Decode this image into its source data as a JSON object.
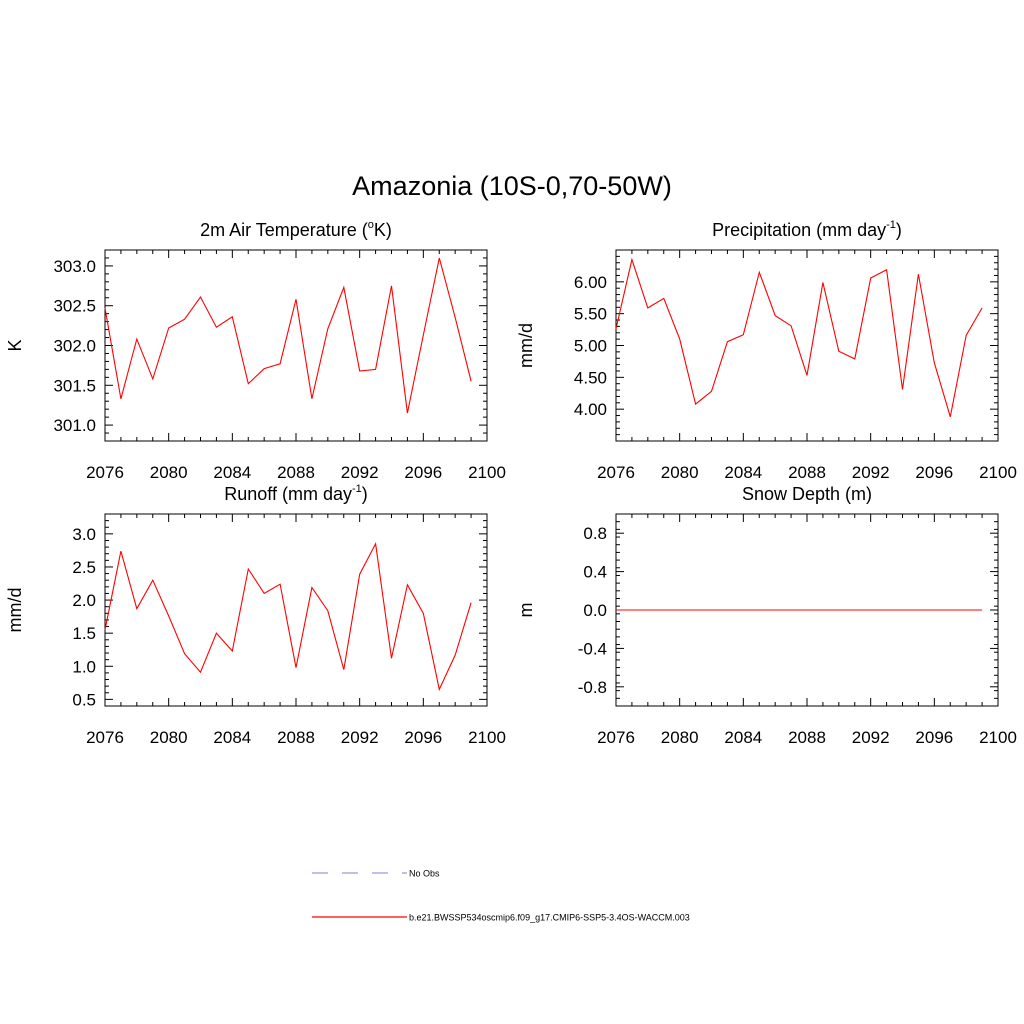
{
  "main_title": "Amazonia (10S-0,70-50W)",
  "colors": {
    "model_line": "#ff0000",
    "obs_line": "#9999dd",
    "axis": "#000000"
  },
  "chart_data": [
    {
      "type": "line",
      "title": "2m Air Temperature (",
      "title_sup": "o",
      "title_tail": "K)",
      "ylabel": "K",
      "xlim": [
        2076,
        2100
      ],
      "ylim": [
        300.8,
        303.2
      ],
      "xticks": [
        2076,
        2080,
        2084,
        2088,
        2092,
        2096,
        2100
      ],
      "yticks": [
        301.0,
        301.5,
        302.0,
        302.5,
        303.0
      ],
      "ytick_labels": [
        "301.0",
        "301.5",
        "302.0",
        "302.5",
        "303.0"
      ],
      "x": [
        2076,
        2077,
        2078,
        2079,
        2080,
        2081,
        2082,
        2083,
        2084,
        2085,
        2086,
        2087,
        2088,
        2089,
        2090,
        2091,
        2092,
        2093,
        2094,
        2095,
        2096,
        2097,
        2098,
        2099
      ],
      "series": [
        {
          "values": [
            302.47,
            301.33,
            302.08,
            301.58,
            302.22,
            302.33,
            302.61,
            302.23,
            302.36,
            301.52,
            301.71,
            301.77,
            302.58,
            301.33,
            302.21,
            302.73,
            301.68,
            301.7,
            302.75,
            301.15,
            302.13,
            303.1,
            302.35,
            301.55
          ]
        }
      ]
    },
    {
      "type": "line",
      "title": "Precipitation (mm day",
      "title_sup": "-1",
      "title_tail": ")",
      "ylabel": "mm/d",
      "xlim": [
        2076,
        2100
      ],
      "ylim": [
        3.5,
        6.5
      ],
      "xticks": [
        2076,
        2080,
        2084,
        2088,
        2092,
        2096,
        2100
      ],
      "yticks": [
        4.0,
        4.5,
        5.0,
        5.5,
        6.0
      ],
      "ytick_labels": [
        "4.00",
        "4.50",
        "5.00",
        "5.50",
        "6.00"
      ],
      "x": [
        2076,
        2077,
        2078,
        2079,
        2080,
        2081,
        2082,
        2083,
        2084,
        2085,
        2086,
        2087,
        2088,
        2089,
        2090,
        2091,
        2092,
        2093,
        2094,
        2095,
        2096,
        2097,
        2098,
        2099
      ],
      "series": [
        {
          "values": [
            5.26,
            6.35,
            5.59,
            5.74,
            5.1,
            4.08,
            4.28,
            5.06,
            5.17,
            6.15,
            5.47,
            5.31,
            4.53,
            5.99,
            4.91,
            4.79,
            6.06,
            6.19,
            4.31,
            6.12,
            4.73,
            3.88,
            5.16,
            5.59
          ]
        }
      ]
    },
    {
      "type": "line",
      "title": "Runoff (mm day",
      "title_sup": "-1",
      "title_tail": ")",
      "ylabel": "mm/d",
      "xlim": [
        2076,
        2100
      ],
      "ylim": [
        0.4,
        3.3
      ],
      "xticks": [
        2076,
        2080,
        2084,
        2088,
        2092,
        2096,
        2100
      ],
      "yticks": [
        0.5,
        1.0,
        1.5,
        2.0,
        2.5,
        3.0
      ],
      "ytick_labels": [
        "0.5",
        "1.0",
        "1.5",
        "2.0",
        "2.5",
        "3.0"
      ],
      "x": [
        2076,
        2077,
        2078,
        2079,
        2080,
        2081,
        2082,
        2083,
        2084,
        2085,
        2086,
        2087,
        2088,
        2089,
        2090,
        2091,
        2092,
        2093,
        2094,
        2095,
        2096,
        2097,
        2098,
        2099
      ],
      "series": [
        {
          "values": [
            1.55,
            2.74,
            1.87,
            2.3,
            1.76,
            1.19,
            0.91,
            1.5,
            1.23,
            2.47,
            2.1,
            2.24,
            0.98,
            2.19,
            1.84,
            0.95,
            2.39,
            2.85,
            1.12,
            2.23,
            1.8,
            0.65,
            1.17,
            1.96
          ]
        }
      ]
    },
    {
      "type": "line",
      "title": "Snow Depth (m)",
      "title_sup": "",
      "title_tail": "",
      "ylabel": "m",
      "xlim": [
        2076,
        2100
      ],
      "ylim": [
        -1.0,
        1.0
      ],
      "xticks": [
        2076,
        2080,
        2084,
        2088,
        2092,
        2096,
        2100
      ],
      "yticks": [
        -0.8,
        -0.4,
        0.0,
        0.4,
        0.8
      ],
      "ytick_labels": [
        "-0.8",
        "-0.4",
        "0.0",
        "0.4",
        "0.8"
      ],
      "x": [
        2076,
        2077,
        2078,
        2079,
        2080,
        2081,
        2082,
        2083,
        2084,
        2085,
        2086,
        2087,
        2088,
        2089,
        2090,
        2091,
        2092,
        2093,
        2094,
        2095,
        2096,
        2097,
        2098,
        2099
      ],
      "series": [
        {
          "values": [
            0,
            0,
            0,
            0,
            0,
            0,
            0,
            0,
            0,
            0,
            0,
            0,
            0,
            0,
            0,
            0,
            0,
            0,
            0,
            0,
            0,
            0,
            0,
            0
          ]
        }
      ]
    }
  ],
  "legend": {
    "items": [
      {
        "label": "No Obs",
        "style": "dashed",
        "color": "#9999dd"
      },
      {
        "label": "b.e21.BWSSP534oscmip6.f09_g17.CMIP6-SSP5-3.4OS-WACCM.003",
        "style": "solid",
        "color": "#ff0000"
      }
    ]
  }
}
